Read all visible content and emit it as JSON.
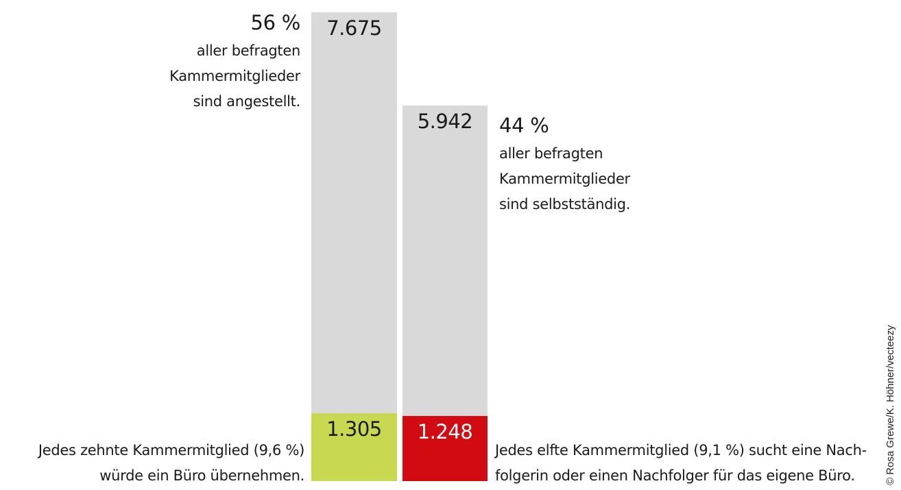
{
  "chart_data": {
    "type": "bar",
    "stacked": true,
    "categories": [
      "angestellt",
      "selbstständig"
    ],
    "series": [
      {
        "values": [
          7675,
          5942
        ],
        "colors": [
          "#d9d9d9",
          "#d9d9d9"
        ],
        "labels": [
          "7.675",
          "5.942"
        ]
      },
      {
        "values": [
          1305,
          1248
        ],
        "colors": [
          "#c8d850",
          "#d20a11"
        ],
        "labels": [
          "1.305",
          "1.248"
        ]
      }
    ],
    "annotations": {
      "employed_pct": "56 %",
      "employed_text": [
        "aller befragten",
        "Kammermitglieder",
        "sind angestellt."
      ],
      "self_pct": "44 %",
      "self_text": [
        "aller befragten",
        "Kammermitglieder",
        "sind selbstständig."
      ],
      "takeover_text": [
        "Jedes zehnte Kammermitglied (9,6 %)",
        "würde ein Büro übernehmen."
      ],
      "successor_text": [
        "Jedes elfte Kammermitglied (9,1 %) sucht eine Nach-",
        "folgerin oder einen Nachfolger für das eigene Büro."
      ]
    },
    "label_colors": [
      "#1a1a1a",
      "#ffffff"
    ]
  },
  "credit": "© Rosa Grewe/K. Höhner/vecteezy"
}
